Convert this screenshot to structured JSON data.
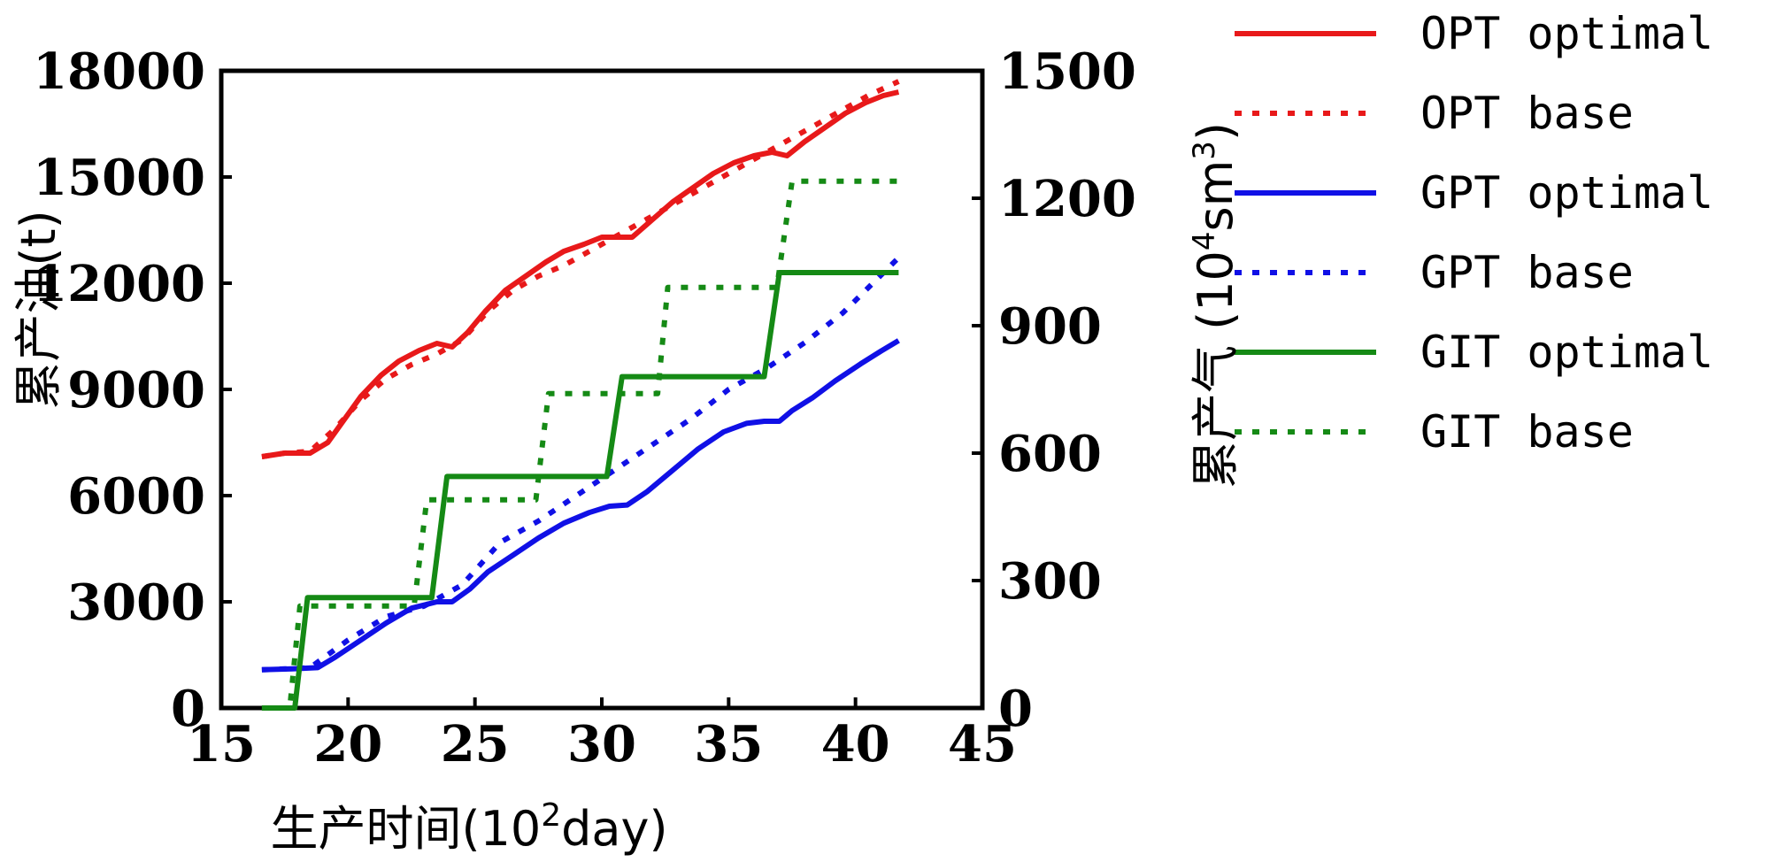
{
  "chart_data": {
    "type": "line",
    "xlabel": {
      "main": "生产时间(10",
      "sup": "2",
      "tail": "day)"
    },
    "ylabel_left": "累产油(t)",
    "ylabel_right": {
      "main": "累产气 (10",
      "sup": "4",
      "tail": "sm",
      "sup2": "3",
      "close": ")"
    },
    "xlim": [
      15,
      45
    ],
    "ylim_left": [
      0,
      18000
    ],
    "ylim_right": [
      0,
      1500
    ],
    "xticks": [
      15,
      20,
      25,
      30,
      35,
      40,
      45
    ],
    "yticks_left": [
      0,
      3000,
      6000,
      9000,
      12000,
      15000,
      18000
    ],
    "yticks_right": [
      0,
      300,
      600,
      900,
      1200,
      1500
    ],
    "legend_position": "outside-right",
    "series": [
      {
        "name": "OPT optimal",
        "color": "#e8191a",
        "style": "solid",
        "axis": "left",
        "x": [
          16.6,
          17.5,
          18.5,
          19.2,
          19.8,
          20.5,
          21.3,
          22.0,
          22.8,
          23.5,
          24.1,
          24.7,
          25.4,
          26.2,
          27.0,
          27.8,
          28.5,
          29.3,
          30.0,
          30.6,
          31.2,
          32.0,
          32.8,
          33.6,
          34.4,
          35.2,
          36.0,
          36.7,
          37.3,
          38.0,
          38.8,
          39.6,
          40.4,
          41.1,
          41.7
        ],
        "y": [
          7100,
          7200,
          7200,
          7500,
          8100,
          8800,
          9400,
          9800,
          10100,
          10300,
          10200,
          10600,
          11200,
          11800,
          12200,
          12600,
          12900,
          13100,
          13300,
          13300,
          13300,
          13800,
          14300,
          14700,
          15100,
          15400,
          15600,
          15700,
          15600,
          16000,
          16400,
          16800,
          17100,
          17300,
          17400
        ]
      },
      {
        "name": "OPT base",
        "color": "#e8191a",
        "style": "dotted",
        "axis": "left",
        "x": [
          16.6,
          17.5,
          18.5,
          19.5,
          20.5,
          21.5,
          22.5,
          23.5,
          24.5,
          25.5,
          26.5,
          27.5,
          28.5,
          29.5,
          30.5,
          31.5,
          32.5,
          33.5,
          34.5,
          35.5,
          36.5,
          37.5,
          38.5,
          39.5,
          40.5,
          41.7
        ],
        "y": [
          7100,
          7200,
          7250,
          7900,
          8700,
          9300,
          9700,
          10000,
          10400,
          11200,
          11800,
          12200,
          12500,
          12900,
          13300,
          13700,
          14100,
          14500,
          14900,
          15300,
          15700,
          16100,
          16500,
          16900,
          17300,
          17700
        ]
      },
      {
        "name": "GPT optimal",
        "color": "#1010e6",
        "style": "solid",
        "axis": "right",
        "x": [
          16.6,
          17.8,
          18.8,
          19.5,
          20.5,
          21.5,
          22.5,
          23.5,
          24.1,
          24.8,
          25.5,
          26.5,
          27.5,
          28.5,
          29.5,
          30.3,
          31.0,
          31.8,
          32.8,
          33.8,
          34.8,
          35.7,
          36.4,
          37.0,
          37.5,
          38.3,
          39.2,
          40.2,
          41.0,
          41.7
        ],
        "y": [
          90,
          92,
          95,
          120,
          160,
          200,
          235,
          250,
          250,
          280,
          320,
          360,
          400,
          435,
          460,
          475,
          478,
          510,
          560,
          610,
          650,
          670,
          675,
          675,
          700,
          730,
          770,
          810,
          840,
          865
        ]
      },
      {
        "name": "GPT base",
        "color": "#1010e6",
        "style": "dotted",
        "axis": "right",
        "x": [
          16.6,
          17.5,
          18.5,
          20.0,
          21.5,
          23.0,
          24.5,
          26.0,
          27.5,
          29.0,
          30.5,
          32.0,
          33.5,
          35.0,
          36.5,
          38.0,
          39.5,
          41.7
        ],
        "y": [
          90,
          92,
          95,
          160,
          215,
          240,
          290,
          390,
          440,
          500,
          560,
          620,
          680,
          750,
          800,
          860,
          930,
          1060
        ]
      },
      {
        "name": "GIT optimal",
        "color": "#158a15",
        "style": "solid",
        "axis": "right",
        "x": [
          16.6,
          17.9,
          18.4,
          23.3,
          23.9,
          30.2,
          30.8,
          36.4,
          37.0,
          41.7
        ],
        "y": [
          0,
          0,
          260,
          260,
          545,
          545,
          780,
          780,
          1025,
          1025
        ]
      },
      {
        "name": "GIT base",
        "color": "#158a15",
        "style": "dotted",
        "axis": "right",
        "x": [
          16.6,
          17.7,
          18.1,
          22.6,
          23.1,
          27.4,
          27.9,
          32.2,
          32.6,
          36.9,
          37.5,
          41.7
        ],
        "y": [
          0,
          0,
          240,
          240,
          490,
          490,
          740,
          740,
          990,
          990,
          1240,
          1240
        ]
      }
    ]
  }
}
